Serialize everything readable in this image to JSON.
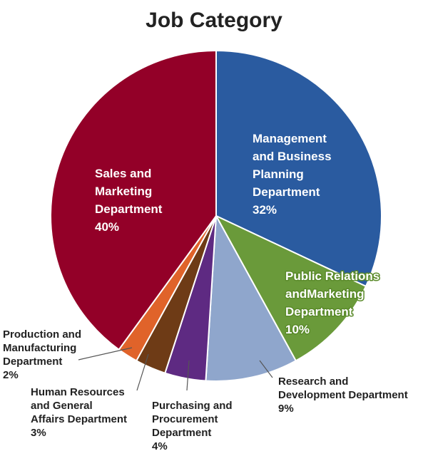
{
  "chart_data": {
    "type": "pie",
    "title": "Job Category",
    "slices": [
      {
        "name": "Management and Business Planning Department",
        "lines": [
          "Management",
          "and Business",
          "Planning",
          "Department"
        ],
        "value": 32,
        "value_label": "32%",
        "color": "#2a5ba0"
      },
      {
        "name": "Public Relations andMarketing Department",
        "lines": [
          "Public Relations",
          "andMarketing",
          "Department"
        ],
        "value": 10,
        "value_label": "10%",
        "color": "#6a9a3a"
      },
      {
        "name": "Research and Development Department",
        "lines": [
          "Research and",
          "Development Department"
        ],
        "value": 9,
        "value_label": "9%",
        "color": "#8fa6cc"
      },
      {
        "name": "Purchasing and Procurement Department",
        "lines": [
          "Purchasing and",
          "Procurement",
          "Department"
        ],
        "value": 4,
        "value_label": "4%",
        "color": "#5e2a82"
      },
      {
        "name": "Human Resources and General Affairs Department",
        "lines": [
          "Human Resources",
          "and General",
          "Affairs Department"
        ],
        "value": 3,
        "value_label": "3%",
        "color": "#6e3b16"
      },
      {
        "name": "Production and Manufacturing Department",
        "lines": [
          "Production and",
          "Manufacturing",
          "Department"
        ],
        "value": 2,
        "value_label": "2%",
        "color": "#e0632a"
      },
      {
        "name": "Sales and Marketing Department",
        "lines": [
          "Sales and",
          "Marketing",
          "Department"
        ],
        "value": 40,
        "value_label": "40%",
        "color": "#930028"
      }
    ],
    "start_angle": "12 o'clock",
    "direction": "clockwise",
    "legend": "none"
  }
}
